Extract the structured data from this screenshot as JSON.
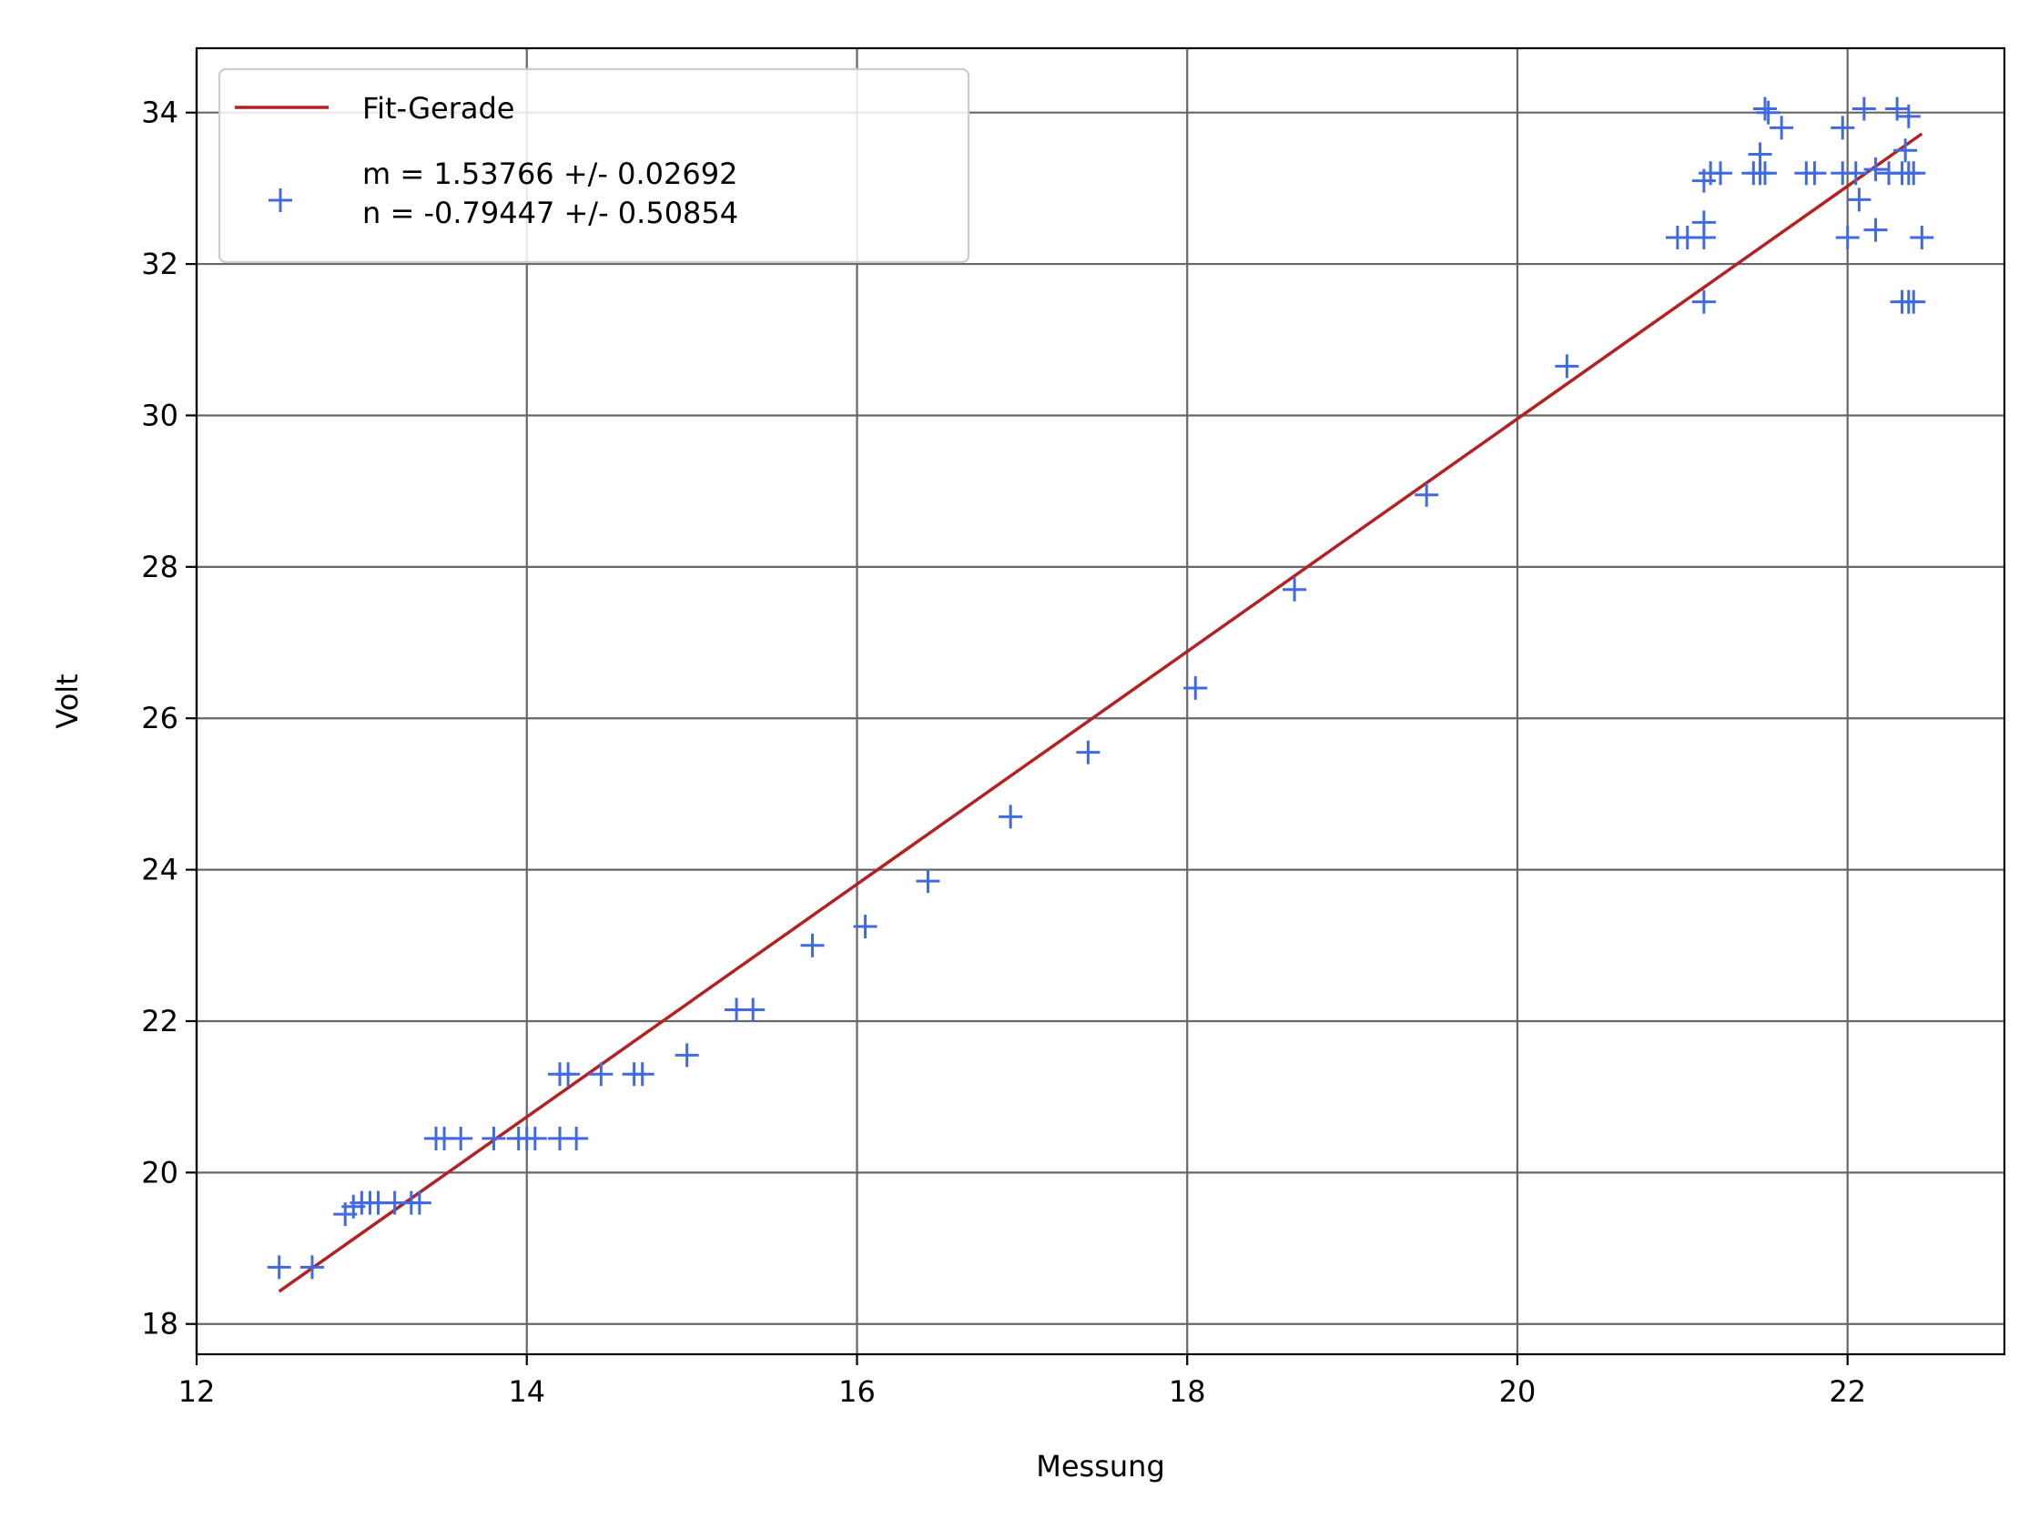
{
  "chart_data": {
    "type": "scatter",
    "title": "",
    "xlabel": "Messung",
    "ylabel": "Volt",
    "xlim": [
      12,
      22.95
    ],
    "ylim": [
      17.6,
      34.85
    ],
    "xticks": [
      12,
      14,
      16,
      18,
      20,
      22
    ],
    "yticks": [
      18,
      20,
      22,
      24,
      26,
      28,
      30,
      32,
      34
    ],
    "grid": true,
    "legend_position": "top-left",
    "colors": {
      "fit": "#b22222",
      "points": "#4169e1",
      "grid": "#666666"
    },
    "legend": [
      {
        "label": "Fit-Gerade",
        "marker": "line"
      },
      {
        "label": "m = 1.53766 +/- 0.02692\nn = -0.79447 +/- 0.50854",
        "marker": "plus"
      }
    ],
    "series": [
      {
        "kind": "line",
        "x": [
          12.5,
          22.45
        ],
        "y": [
          18.43,
          33.72
        ]
      },
      {
        "kind": "scatter",
        "marker": "+",
        "points": [
          [
            12.5,
            18.75
          ],
          [
            12.7,
            18.75
          ],
          [
            12.9,
            19.45
          ],
          [
            12.95,
            19.55
          ],
          [
            13.0,
            19.6
          ],
          [
            13.05,
            19.6
          ],
          [
            13.1,
            19.6
          ],
          [
            13.2,
            19.6
          ],
          [
            13.3,
            19.6
          ],
          [
            13.35,
            19.6
          ],
          [
            13.45,
            20.45
          ],
          [
            13.5,
            20.45
          ],
          [
            13.6,
            20.45
          ],
          [
            13.8,
            20.45
          ],
          [
            13.95,
            20.45
          ],
          [
            14.0,
            20.45
          ],
          [
            14.05,
            20.45
          ],
          [
            14.2,
            20.45
          ],
          [
            14.3,
            20.45
          ],
          [
            14.2,
            21.3
          ],
          [
            14.25,
            21.3
          ],
          [
            14.45,
            21.3
          ],
          [
            14.65,
            21.3
          ],
          [
            14.7,
            21.3
          ],
          [
            14.97,
            21.55
          ],
          [
            15.27,
            22.15
          ],
          [
            15.37,
            22.15
          ],
          [
            15.73,
            23.0
          ],
          [
            16.05,
            23.25
          ],
          [
            16.43,
            23.85
          ],
          [
            16.93,
            24.7
          ],
          [
            17.4,
            25.55
          ],
          [
            18.05,
            26.4
          ],
          [
            18.65,
            27.7
          ],
          [
            19.45,
            28.95
          ],
          [
            20.3,
            30.65
          ],
          [
            20.97,
            32.35
          ],
          [
            21.03,
            32.35
          ],
          [
            21.13,
            32.35
          ],
          [
            21.13,
            32.55
          ],
          [
            21.13,
            31.5
          ],
          [
            21.13,
            33.1
          ],
          [
            21.17,
            33.2
          ],
          [
            21.23,
            33.2
          ],
          [
            21.43,
            33.2
          ],
          [
            21.47,
            33.2
          ],
          [
            21.5,
            33.2
          ],
          [
            21.47,
            33.45
          ],
          [
            21.5,
            34.05
          ],
          [
            21.52,
            34.0
          ],
          [
            21.6,
            33.8
          ],
          [
            21.75,
            33.2
          ],
          [
            21.8,
            33.2
          ],
          [
            21.97,
            33.8
          ],
          [
            21.97,
            33.2
          ],
          [
            22.0,
            32.35
          ],
          [
            22.07,
            32.85
          ],
          [
            22.05,
            33.2
          ],
          [
            22.1,
            34.05
          ],
          [
            22.17,
            32.45
          ],
          [
            22.17,
            33.25
          ],
          [
            22.25,
            33.2
          ],
          [
            22.3,
            34.05
          ],
          [
            22.33,
            33.2
          ],
          [
            22.37,
            33.2
          ],
          [
            22.35,
            33.5
          ],
          [
            22.37,
            33.95
          ],
          [
            22.4,
            33.2
          ],
          [
            22.33,
            31.5
          ],
          [
            22.37,
            31.5
          ],
          [
            22.4,
            31.5
          ],
          [
            22.45,
            32.35
          ]
        ]
      }
    ]
  }
}
